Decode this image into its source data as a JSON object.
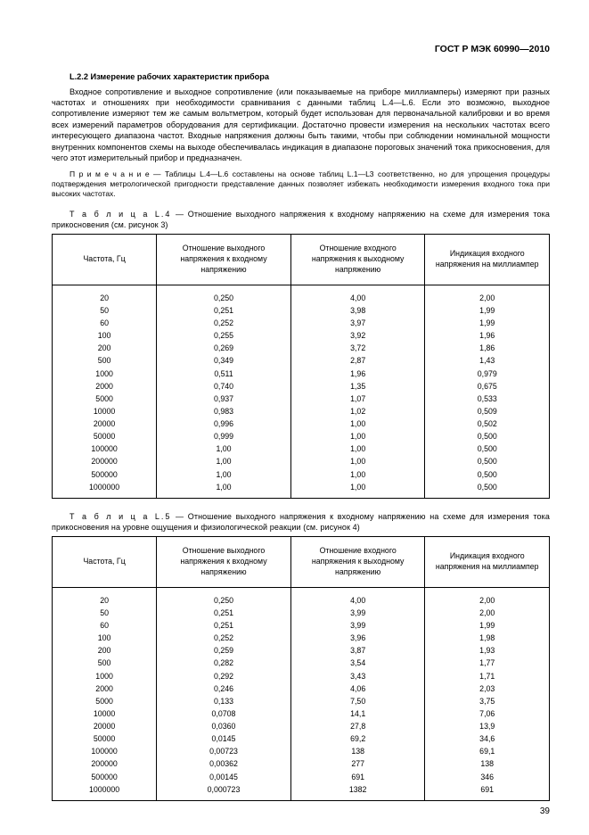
{
  "header": {
    "doc_id": "ГОСТ Р МЭК 60990—2010"
  },
  "section": {
    "num_title": "L.2.2  Измерение рабочих характеристик прибора"
  },
  "paragraphs": {
    "p1": "Входное сопротивление и выходное сопротивление (или показываемые на приборе миллиамперы) измеряют при разных частотах и отношениях при необходимости сравнивания с данными таблиц L.4—L.6. Если это возможно, выходное сопротивление измеряют тем же самым вольтметром, который будет использован для первоначальной калибровки и во время всех измерений параметров оборудования для сертификации. Достаточно провести измерения на нескольких частотах всего интересующего диапазона частот. Входные напряжения должны быть такими, чтобы при соблюдении номинальной мощности внутренних компонентов схемы на выходе обеспечивалась индикация в диапазоне пороговых значений тока прикосновения, для чего этот измерительный прибор и предназначен.",
    "note_label": "П р и м е ч а н и е",
    "note": " — Таблицы L.4—L.6 составлены на основе таблиц L.1—L3 соответственно, но для упрощения процедуры подтверждения метрологической пригодности представление данных позволяет избежать необходимости измерения входного тока при высоких частотах."
  },
  "columns": {
    "c1": "Частота, Гц",
    "c2": "Отношение выходного напряжения к входному напряжению",
    "c3": "Отношение входного напряжения к выходному напряжению",
    "c4": "Индикация входного напряжения на миллиампер"
  },
  "table4": {
    "caption_label": "Т а б л и ц а  L.4",
    "caption": " — Отношение выходного напряжения к входному напряжению на схеме для измерения тока прикосновения (см. рисунок 3)",
    "rows": [
      [
        "20",
        "0,250",
        "4,00",
        "2,00"
      ],
      [
        "50",
        "0,251",
        "3,98",
        "1,99"
      ],
      [
        "60",
        "0,252",
        "3,97",
        "1,99"
      ],
      [
        "100",
        "0,255",
        "3,92",
        "1,96"
      ],
      [
        "200",
        "0,269",
        "3,72",
        "1,86"
      ],
      [
        "500",
        "0,349",
        "2,87",
        "1,43"
      ],
      [
        "1000",
        "0,511",
        "1,96",
        "0,979"
      ],
      [
        "2000",
        "0,740",
        "1,35",
        "0,675"
      ],
      [
        "5000",
        "0,937",
        "1,07",
        "0,533"
      ],
      [
        "10000",
        "0,983",
        "1,02",
        "0,509"
      ],
      [
        "20000",
        "0,996",
        "1,00",
        "0,502"
      ],
      [
        "50000",
        "0,999",
        "1,00",
        "0,500"
      ],
      [
        "100000",
        "1,00",
        "1,00",
        "0,500"
      ],
      [
        "200000",
        "1,00",
        "1,00",
        "0,500"
      ],
      [
        "500000",
        "1,00",
        "1,00",
        "0,500"
      ],
      [
        "1000000",
        "1,00",
        "1,00",
        "0,500"
      ]
    ]
  },
  "table5": {
    "caption_label": "Т а б л и ц а  L.5",
    "caption": " — Отношение выходного напряжения к входному напряжению на схеме для измерения тока прикосновения на уровне ощущения и физиологической реакции (см. рисунок 4)",
    "rows": [
      [
        "20",
        "0,250",
        "4,00",
        "2,00"
      ],
      [
        "50",
        "0,251",
        "3,99",
        "2,00"
      ],
      [
        "60",
        "0,251",
        "3,99",
        "1,99"
      ],
      [
        "100",
        "0,252",
        "3,96",
        "1,98"
      ],
      [
        "200",
        "0,259",
        "3,87",
        "1,93"
      ],
      [
        "500",
        "0,282",
        "3,54",
        "1,77"
      ],
      [
        "1000",
        "0,292",
        "3,43",
        "1,71"
      ],
      [
        "2000",
        "0,246",
        "4,06",
        "2,03"
      ],
      [
        "5000",
        "0,133",
        "7,50",
        "3,75"
      ],
      [
        "10000",
        "0,0708",
        "14,1",
        "7,06"
      ],
      [
        "20000",
        "0,0360",
        "27,8",
        "13,9"
      ],
      [
        "50000",
        "0,0145",
        "69,2",
        "34,6"
      ],
      [
        "100000",
        "0,00723",
        "138",
        "69,1"
      ],
      [
        "200000",
        "0,00362",
        "277",
        "138"
      ],
      [
        "500000",
        "0,00145",
        "691",
        "346"
      ],
      [
        "1000000",
        "0,000723",
        "1382",
        "691"
      ]
    ]
  },
  "footer": {
    "page_num": "39"
  }
}
